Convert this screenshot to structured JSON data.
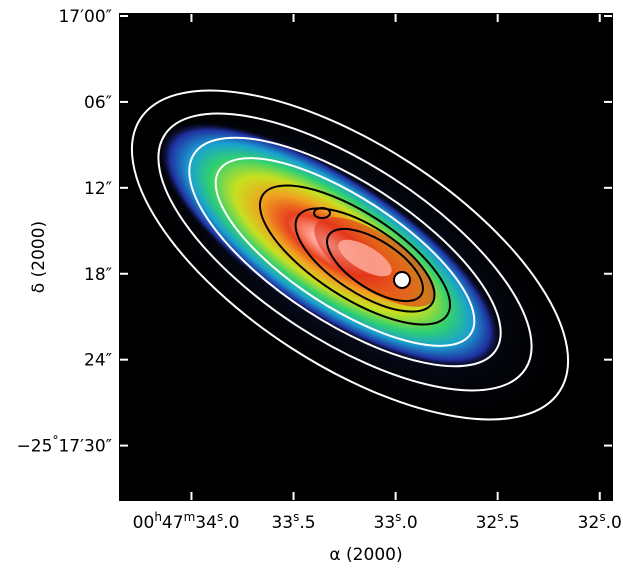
{
  "chart_data": {
    "type": "image",
    "xlabel": "α (2000)",
    "ylabel": "δ (2000)",
    "xlim": [
      34.35,
      31.94
    ],
    "xticks": [
      {
        "value": 34.0,
        "label": "00h47m34s.0"
      },
      {
        "value": 33.5,
        "label": "33s.5"
      },
      {
        "value": 33.0,
        "label": "33s.0"
      },
      {
        "value": 32.5,
        "label": "32s.5"
      },
      {
        "value": 32.0,
        "label": "32s.0"
      }
    ],
    "ylim": [
      33.8,
      -0.14
    ],
    "yticks": [
      {
        "value": 0,
        "label": "17′00″"
      },
      {
        "value": 6,
        "label": "06″"
      },
      {
        "value": 12,
        "label": "12″"
      },
      {
        "value": 18,
        "label": "18″"
      },
      {
        "value": 24,
        "label": "24″"
      },
      {
        "value": 30,
        "label": "−25°17′30″"
      }
    ]
  }
}
